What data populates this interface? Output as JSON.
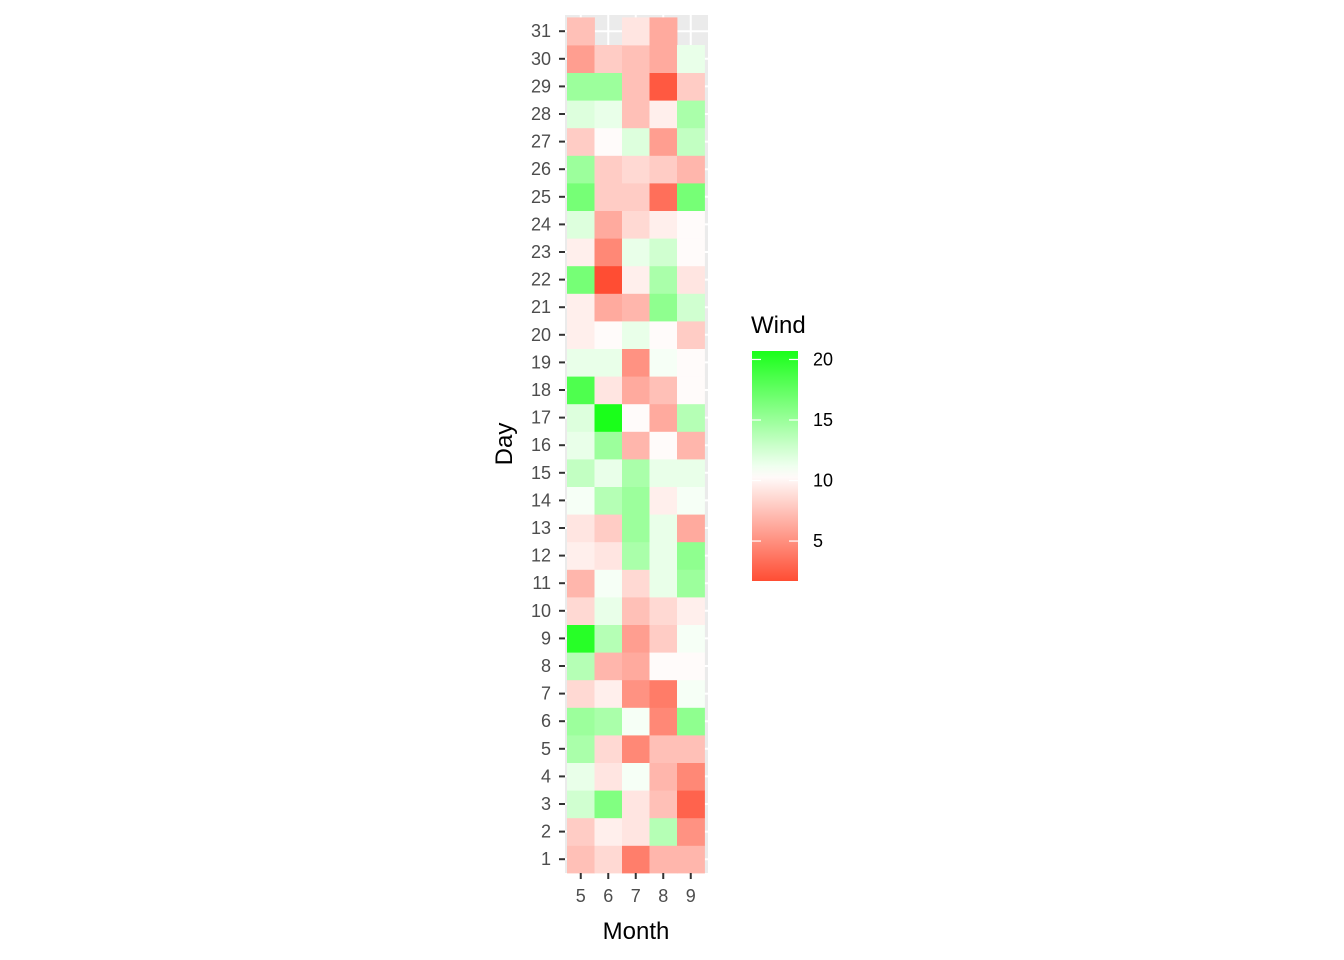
{
  "chart_data": {
    "type": "heatmap",
    "xlabel": "Month",
    "ylabel": "Day",
    "x_categories": [
      "5",
      "6",
      "7",
      "8",
      "9"
    ],
    "y_categories": [
      "1",
      "2",
      "3",
      "4",
      "5",
      "6",
      "7",
      "8",
      "9",
      "10",
      "11",
      "12",
      "13",
      "14",
      "15",
      "16",
      "17",
      "18",
      "19",
      "20",
      "21",
      "22",
      "23",
      "24",
      "25",
      "26",
      "27",
      "28",
      "29",
      "30",
      "31"
    ],
    "grid": true,
    "legend": {
      "title": "Wind",
      "position": "right",
      "breaks": [
        20,
        15,
        10,
        5
      ],
      "range": [
        1.7,
        20.7
      ],
      "colors": {
        "low": "#ff4d33",
        "mid": "#ffffff",
        "high": "#1aff1a"
      },
      "midpoint": 10.5
    },
    "values": {
      "5": [
        7.4,
        8.0,
        12.6,
        11.5,
        14.3,
        14.9,
        8.6,
        13.8,
        20.1,
        8.6,
        6.9,
        9.7,
        9.2,
        10.9,
        13.2,
        11.5,
        12.0,
        18.4,
        11.5,
        9.7,
        9.7,
        16.6,
        9.7,
        12.0,
        16.6,
        14.9,
        8.0,
        12.0,
        14.9,
        5.7,
        7.4
      ],
      "6": [
        8.6,
        9.7,
        16.1,
        9.2,
        8.6,
        14.3,
        9.7,
        6.9,
        13.8,
        11.5,
        10.9,
        9.2,
        8.0,
        13.8,
        11.5,
        14.9,
        20.7,
        9.2,
        11.5,
        10.3,
        6.3,
        1.7,
        4.6,
        6.3,
        8.0,
        8.0,
        10.3,
        11.5,
        14.9,
        8.0,
        null
      ],
      "7": [
        4.1,
        9.2,
        9.2,
        10.9,
        4.6,
        10.9,
        5.1,
        6.3,
        5.7,
        7.4,
        8.6,
        14.3,
        14.9,
        14.9,
        14.3,
        6.9,
        10.3,
        6.3,
        5.1,
        11.5,
        6.9,
        9.7,
        11.5,
        8.6,
        8.0,
        8.6,
        12.0,
        7.4,
        7.4,
        7.4,
        9.2
      ],
      "8": [
        6.9,
        13.8,
        7.4,
        6.9,
        7.4,
        4.6,
        4.0,
        10.3,
        8.0,
        8.6,
        11.5,
        11.5,
        11.5,
        9.7,
        11.5,
        10.3,
        6.3,
        7.4,
        10.9,
        10.3,
        15.5,
        14.3,
        12.6,
        9.7,
        3.4,
        8.0,
        5.7,
        9.7,
        2.3,
        6.3,
        6.3
      ],
      "9": [
        6.9,
        5.1,
        2.8,
        4.6,
        7.4,
        15.5,
        10.9,
        10.3,
        10.9,
        9.7,
        14.9,
        15.5,
        6.3,
        10.9,
        11.5,
        6.9,
        13.8,
        10.3,
        10.3,
        8.0,
        12.6,
        9.2,
        10.3,
        10.3,
        16.6,
        6.9,
        13.2,
        14.3,
        8.0,
        11.5,
        null
      ]
    }
  }
}
